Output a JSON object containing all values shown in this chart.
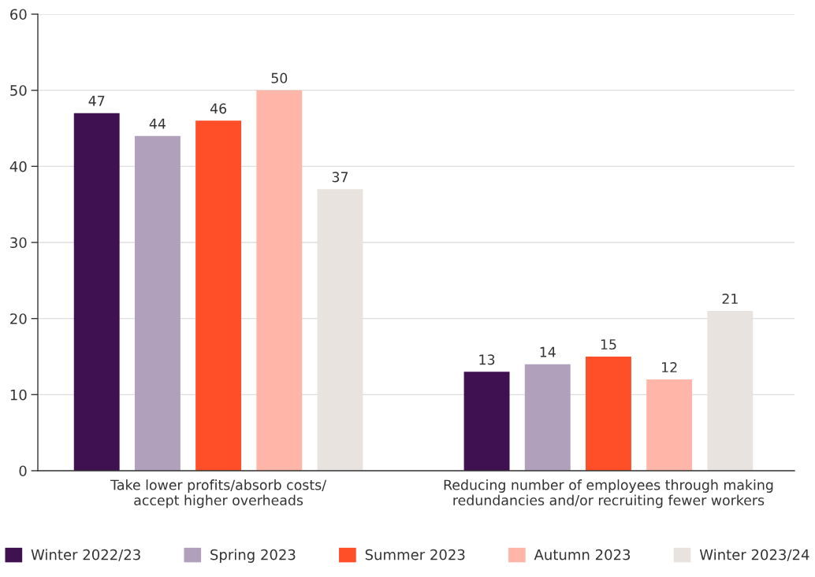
{
  "chart_data": {
    "type": "bar",
    "categories": [
      "Take lower profits/absorb costs/\naccept higher overheads",
      "Reducing number of employees through making\nredundancies and/or recruiting fewer workers"
    ],
    "series": [
      {
        "name": "Winter 2022/23",
        "color": "#3f1150",
        "values": [
          47,
          13
        ]
      },
      {
        "name": "Spring 2023",
        "color": "#b0a0bb",
        "values": [
          44,
          14
        ]
      },
      {
        "name": "Summer 2023",
        "color": "#ff4f28",
        "values": [
          46,
          15
        ]
      },
      {
        "name": "Autumn 2023",
        "color": "#ffb6a8",
        "values": [
          50,
          12
        ]
      },
      {
        "name": "Winter 2023/24",
        "color": "#e8e3df",
        "values": [
          37,
          21
        ]
      }
    ],
    "ylim": [
      0,
      60
    ],
    "yticks": [
      0,
      10,
      20,
      30,
      40,
      50,
      60
    ],
    "grid": "y",
    "legend": "bottom",
    "data_labels": true
  }
}
